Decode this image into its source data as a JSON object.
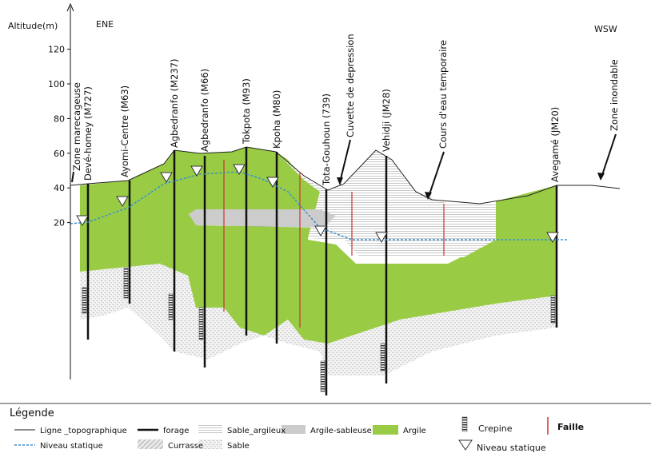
{
  "axis": {
    "label": "Altitude(m)",
    "ticks": [
      120,
      100,
      80,
      60,
      40,
      20
    ]
  },
  "directions": {
    "left": "ENE",
    "right": "WSW"
  },
  "wells": [
    "Devé-homey (M727)",
    "Ayomi-Centre (M63)",
    "Agbedranfo (M237)",
    "Agbedranfo (M66)",
    "Tokpota (M93)",
    "Kpoha (M80)",
    "Tota-Gouhoun (739)",
    "Vehidji (JM28)",
    "Avegamé (JM20)"
  ],
  "annotations": [
    "Zone marecageuse",
    "Cuvette de depression",
    "Cours d'eau temporaire",
    "Zone inondable"
  ],
  "legend": {
    "title": "Légende",
    "items": [
      "Ligne _topographique",
      "forage",
      "Sable_argileux",
      "Argile-sableuse",
      "Argile",
      "Niveau statique",
      "Currasse",
      "Sable",
      "Crepine",
      "Faille",
      "Niveau statique"
    ]
  }
}
